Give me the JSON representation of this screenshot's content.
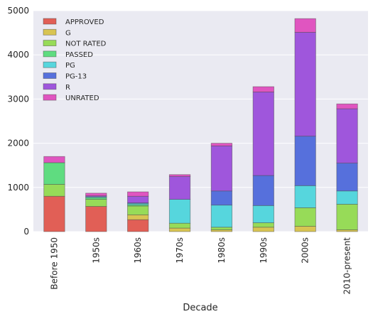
{
  "chart_data": {
    "type": "bar",
    "stacked": true,
    "xlabel": "Decade",
    "ylabel": "",
    "ylim": [
      0,
      5000
    ],
    "yticks": [
      0,
      1000,
      2000,
      3000,
      4000,
      5000
    ],
    "grid": true,
    "legend_position": "top-left",
    "categories": [
      "Before 1950",
      "1950s",
      "1960s",
      "1970s",
      "1980s",
      "1990s",
      "2000s",
      "2010-present"
    ],
    "series": [
      {
        "name": "APPROVED",
        "color": "#e15f56",
        "values": [
          800,
          570,
          270,
          0,
          0,
          0,
          0,
          0
        ]
      },
      {
        "name": "G",
        "color": "#d8c452",
        "values": [
          0,
          0,
          110,
          80,
          40,
          100,
          120,
          40
        ]
      },
      {
        "name": "NOT RATED",
        "color": "#97db58",
        "values": [
          270,
          160,
          200,
          110,
          60,
          100,
          420,
          580
        ]
      },
      {
        "name": "PASSED",
        "color": "#5fdc80",
        "values": [
          490,
          40,
          30,
          0,
          0,
          0,
          0,
          0
        ]
      },
      {
        "name": "PG",
        "color": "#56d6dd",
        "values": [
          0,
          20,
          30,
          540,
          500,
          390,
          500,
          300
        ]
      },
      {
        "name": "PG-13",
        "color": "#5670dc",
        "values": [
          0,
          0,
          10,
          0,
          320,
          680,
          1120,
          630
        ]
      },
      {
        "name": "R",
        "color": "#9f56dc",
        "values": [
          0,
          20,
          150,
          520,
          1020,
          1890,
          2350,
          1230
        ]
      },
      {
        "name": "UNRATED",
        "color": "#e055c0",
        "values": [
          140,
          60,
          100,
          40,
          60,
          120,
          310,
          110
        ]
      }
    ]
  }
}
